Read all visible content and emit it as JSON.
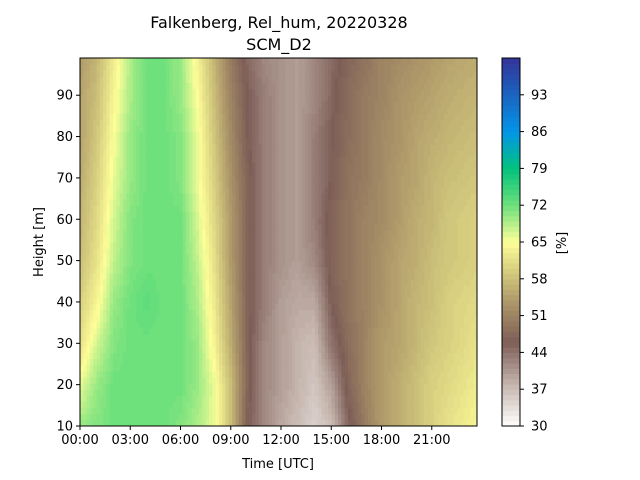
{
  "chart_data": {
    "type": "heatmap",
    "title": "Falkenberg, Rel_hum, 20220328",
    "subtitle": "SCM_D2",
    "xlabel": "Time [UTC]",
    "ylabel": "Height [m]",
    "colorbar_label": "[%]",
    "xlim": [
      0,
      23.7
    ],
    "ylim": [
      10,
      99
    ],
    "xticks": [
      0,
      3,
      6,
      9,
      12,
      15,
      18,
      21
    ],
    "xtick_labels": [
      "00:00",
      "03:00",
      "06:00",
      "09:00",
      "12:00",
      "15:00",
      "18:00",
      "21:00"
    ],
    "yticks": [
      10,
      20,
      30,
      40,
      50,
      60,
      70,
      80,
      90
    ],
    "ytick_labels": [
      "10",
      "20",
      "30",
      "40",
      "50",
      "60",
      "70",
      "80",
      "90"
    ],
    "colorbar_range": [
      30,
      100
    ],
    "colorbar_ticks": [
      30,
      37,
      44,
      51,
      58,
      65,
      72,
      79,
      86,
      93
    ],
    "colorbar_tick_labels": [
      "30",
      "37",
      "44",
      "51",
      "58",
      "65",
      "72",
      "79",
      "86",
      "93"
    ],
    "colormap": "terrain_r",
    "colormap_stops": [
      {
        "value": 30,
        "color": "#ffffff"
      },
      {
        "value": 38,
        "color": "#c4b4ac"
      },
      {
        "value": 46,
        "color": "#7d5e57"
      },
      {
        "value": 54,
        "color": "#b09a6a"
      },
      {
        "value": 60,
        "color": "#d8d080"
      },
      {
        "value": 65,
        "color": "#fefe98"
      },
      {
        "value": 72,
        "color": "#6ee07c"
      },
      {
        "value": 79,
        "color": "#02c27c"
      },
      {
        "value": 86,
        "color": "#0296e8"
      },
      {
        "value": 100,
        "color": "#333399"
      }
    ],
    "rows_note": "relative humidity [%] estimated on a grid: rows = heights, columns = times",
    "heights": [
      10,
      20,
      30,
      40,
      50,
      60,
      70,
      80,
      90,
      99
    ],
    "times": [
      0,
      1,
      2,
      3,
      4,
      5,
      6,
      7,
      8,
      9,
      10,
      11,
      12,
      13,
      14,
      15,
      16,
      17,
      18,
      19,
      20,
      21,
      22,
      23.7
    ],
    "values": [
      [
        70,
        71,
        72,
        72,
        72,
        72,
        71,
        69,
        66,
        58,
        46,
        42,
        39,
        37,
        35,
        37,
        45,
        50,
        54,
        56,
        58,
        60,
        62,
        64
      ],
      [
        66,
        70,
        72,
        72,
        72,
        72,
        72,
        70,
        66,
        58,
        47,
        42,
        40,
        38,
        36,
        40,
        47,
        51,
        54,
        56,
        58,
        60,
        61,
        63
      ],
      [
        62,
        67,
        71,
        72,
        72,
        72,
        72,
        70,
        64,
        56,
        47,
        42,
        40,
        38,
        37,
        44,
        48,
        51,
        54,
        55,
        57,
        59,
        60,
        62
      ],
      [
        60,
        64,
        70,
        72,
        73,
        72,
        72,
        69,
        63,
        55,
        47,
        43,
        40,
        39,
        39,
        46,
        49,
        51,
        53,
        55,
        57,
        58,
        60,
        61
      ],
      [
        58,
        62,
        68,
        71,
        72,
        72,
        72,
        68,
        62,
        54,
        47,
        43,
        41,
        40,
        42,
        47,
        49,
        51,
        53,
        55,
        56,
        58,
        59,
        60
      ],
      [
        57,
        61,
        67,
        71,
        72,
        72,
        72,
        67,
        61,
        54,
        47,
        43,
        41,
        40,
        43,
        47,
        49,
        51,
        52,
        54,
        56,
        57,
        59,
        60
      ],
      [
        56,
        60,
        66,
        70,
        72,
        72,
        71,
        66,
        60,
        53,
        47,
        43,
        41,
        40,
        43,
        46,
        49,
        50,
        52,
        54,
        55,
        57,
        58,
        59
      ],
      [
        55,
        59,
        65,
        70,
        72,
        72,
        71,
        66,
        59,
        52,
        46,
        43,
        41,
        40,
        43,
        46,
        48,
        50,
        52,
        53,
        55,
        56,
        57,
        58
      ],
      [
        55,
        58,
        64,
        69,
        72,
        72,
        70,
        65,
        58,
        51,
        46,
        43,
        41,
        40,
        42,
        45,
        48,
        50,
        51,
        53,
        54,
        55,
        56,
        57
      ],
      [
        54,
        57,
        63,
        69,
        72,
        72,
        70,
        64,
        57,
        50,
        45,
        42,
        41,
        40,
        42,
        45,
        47,
        49,
        51,
        52,
        53,
        54,
        55,
        56
      ]
    ]
  }
}
